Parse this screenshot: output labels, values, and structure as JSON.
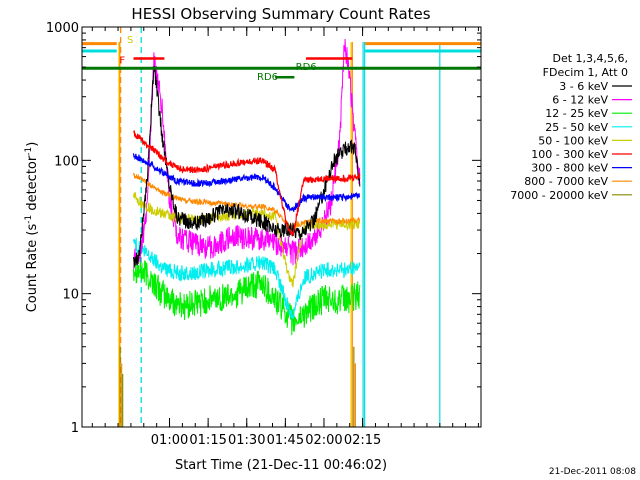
{
  "chart_data": {
    "type": "line",
    "title": "HESSI Observing Summary Count Rates",
    "xlabel": "Start Time (21-Dec-11 00:46:02)",
    "ylabel": "Count Rate (s⁻¹ detector⁻¹)",
    "ylabel_parts": {
      "pre": "Count Rate (s",
      "sup": "-1",
      "mid": " detector",
      "sup2": "-1",
      "post": ")"
    },
    "y_scale": "log",
    "ylim": [
      1,
      1000
    ],
    "xlim_min": [
      -20,
      135
    ],
    "x_unit": "minutes since 00:46:02",
    "y_ticks": [
      {
        "v": 1,
        "label": "1"
      },
      {
        "v": 10,
        "label": "10"
      },
      {
        "v": 100,
        "label": "100"
      },
      {
        "v": 1000,
        "label": "1000"
      }
    ],
    "x_ticks": [
      {
        "t": 14,
        "label": "01:00"
      },
      {
        "t": 29,
        "label": "01:15"
      },
      {
        "t": 44,
        "label": "01:30"
      },
      {
        "t": 59,
        "label": "01:45"
      },
      {
        "t": 74,
        "label": "02:00"
      },
      {
        "t": 89,
        "label": "02:15"
      }
    ],
    "legend_header": [
      "Det 1,3,4,5,6,",
      "FDecim 1, Att 0"
    ],
    "legend_position": "right",
    "series": [
      {
        "name": "3 - 6 keV",
        "color": "#000000",
        "x": [
          0,
          2,
          5,
          8,
          11,
          14,
          17,
          20,
          25,
          30,
          35,
          40,
          45,
          50,
          55,
          60,
          62,
          66,
          70,
          74,
          77,
          78,
          80,
          82,
          84,
          86,
          88
        ],
        "y": [
          18,
          18,
          60,
          520,
          160,
          65,
          38,
          35,
          34,
          38,
          42,
          42,
          38,
          35,
          30,
          30,
          30,
          29,
          35,
          60,
          90,
          100,
          110,
          120,
          130,
          120,
          65
        ]
      },
      {
        "name": "6 - 12 keV",
        "color": "#ff00ff",
        "x": [
          0,
          2,
          5,
          8,
          11,
          14,
          17,
          20,
          25,
          30,
          35,
          40,
          45,
          50,
          55,
          60,
          62,
          66,
          70,
          74,
          77,
          80,
          82,
          84,
          86,
          88
        ],
        "y": [
          18,
          18,
          38,
          570,
          250,
          50,
          28,
          25,
          23,
          22,
          25,
          27,
          26,
          26,
          24,
          22,
          20,
          22,
          26,
          35,
          50,
          130,
          800,
          400,
          150,
          65
        ]
      },
      {
        "name": "12 - 25 keV",
        "color": "#00ee00",
        "x": [
          0,
          2,
          5,
          8,
          11,
          14,
          17,
          20,
          25,
          30,
          35,
          40,
          45,
          50,
          55,
          60,
          62,
          66,
          70,
          74,
          80,
          84,
          88
        ],
        "y": [
          16,
          15,
          14,
          12,
          10,
          9,
          8.5,
          8,
          8.5,
          9,
          9.5,
          10,
          11,
          12,
          9,
          7,
          6,
          7,
          8,
          9,
          9,
          9,
          10
        ]
      },
      {
        "name": "25 - 50 keV",
        "color": "#00eeee",
        "x": [
          0,
          2,
          5,
          8,
          11,
          14,
          17,
          20,
          25,
          30,
          35,
          40,
          45,
          50,
          55,
          60,
          62,
          66,
          70,
          74,
          80,
          84,
          88
        ],
        "y": [
          25,
          22,
          20,
          18,
          16,
          15,
          14.5,
          14,
          14.5,
          15,
          15.5,
          16,
          16.5,
          17,
          15,
          8,
          7,
          13,
          14,
          15,
          15,
          15,
          16
        ]
      },
      {
        "name": "50 - 100 keV",
        "color": "#cccc00",
        "x": [
          0,
          2,
          5,
          8,
          11,
          14,
          17,
          20,
          25,
          30,
          35,
          40,
          45,
          50,
          55,
          60,
          62,
          66,
          70,
          74,
          80,
          84,
          88
        ],
        "y": [
          55,
          50,
          45,
          42,
          40,
          38,
          37,
          36,
          36,
          37,
          38,
          39,
          40,
          40,
          38,
          14,
          12,
          32,
          33,
          33,
          33,
          33,
          34
        ]
      },
      {
        "name": "100 - 300 keV",
        "color": "#ff0000",
        "x": [
          0,
          2,
          5,
          8,
          11,
          14,
          17,
          20,
          25,
          30,
          35,
          40,
          45,
          50,
          55,
          60,
          62,
          66,
          70,
          74,
          80,
          84,
          88
        ],
        "y": [
          160,
          150,
          130,
          120,
          105,
          95,
          88,
          85,
          85,
          88,
          92,
          95,
          97,
          100,
          85,
          30,
          28,
          70,
          72,
          73,
          73,
          74,
          76
        ]
      },
      {
        "name": "300 - 800 keV",
        "color": "#0000ff",
        "x": [
          0,
          2,
          5,
          8,
          11,
          14,
          17,
          20,
          25,
          30,
          35,
          40,
          45,
          50,
          55,
          60,
          62,
          66,
          70,
          74,
          80,
          84,
          88
        ],
        "y": [
          110,
          105,
          98,
          90,
          82,
          75,
          70,
          68,
          67,
          68,
          70,
          72,
          74,
          75,
          62,
          45,
          42,
          52,
          53,
          53,
          53,
          53,
          54
        ]
      },
      {
        "name": "800 - 7000 keV",
        "color": "#ff8800",
        "x": [
          0,
          2,
          5,
          8,
          11,
          14,
          17,
          20,
          25,
          30,
          35,
          40,
          45,
          50,
          55,
          60,
          62,
          66,
          70,
          74,
          80,
          84,
          88
        ],
        "y": [
          78,
          74,
          68,
          62,
          58,
          54,
          52,
          50,
          49,
          48,
          47,
          46,
          45,
          45,
          42,
          33,
          32,
          34,
          35,
          35,
          35,
          35,
          36
        ]
      },
      {
        "name": "7000 - 20000 keV",
        "color": "#888800",
        "x": [],
        "y": []
      }
    ],
    "annotations": [
      "S",
      "F",
      "RD6",
      "RD6"
    ]
  },
  "footer_date": "21-Dec-2011 08:08"
}
